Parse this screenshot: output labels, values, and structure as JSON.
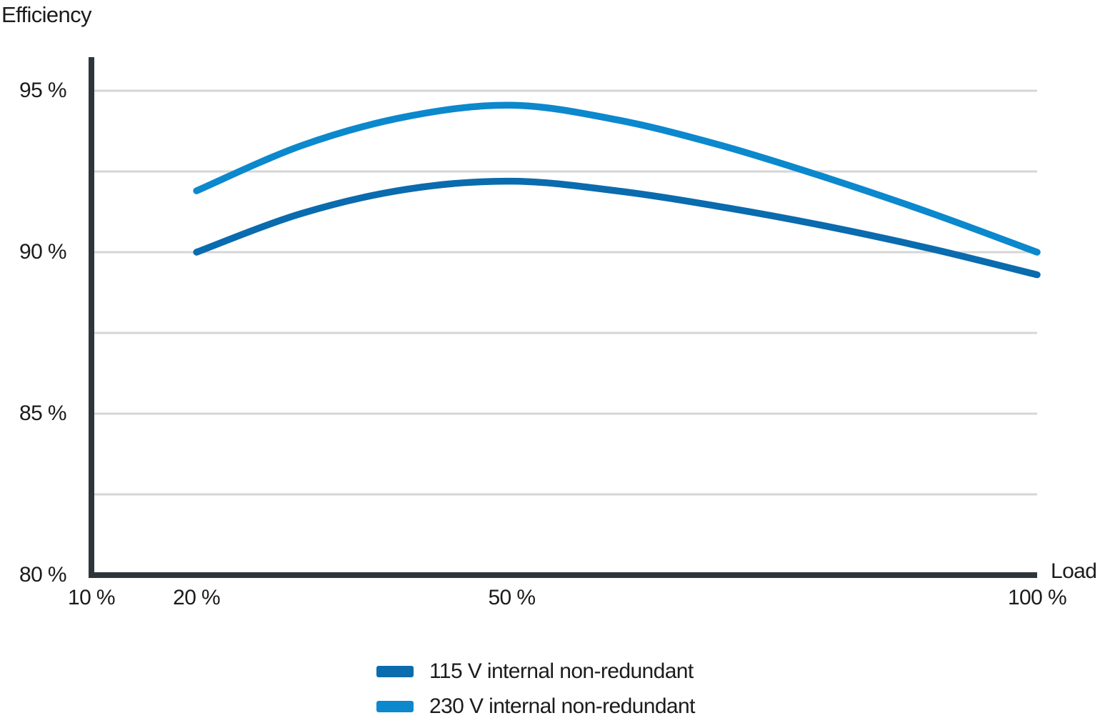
{
  "title": "Efficiency",
  "colors": {
    "axis": "#2e363b",
    "grid": "#d6d6d6",
    "text": "#1c1c1c",
    "series_dark_blue": "#0a6bae",
    "series_light_blue": "#0c88cd"
  },
  "legend": [
    {
      "label": "115 V internal non-redundant",
      "color": "#0a6bae"
    },
    {
      "label": "230 V internal non-redundant",
      "color": "#0c88cd"
    }
  ],
  "chart_data": {
    "type": "line",
    "title": "",
    "ylabel": "Efficiency",
    "xlabel": "Load",
    "xlim": [
      10,
      100
    ],
    "ylim": [
      80,
      95
    ],
    "grid": "horizontal",
    "legend_position": "bottom",
    "gridlines_y": [
      95,
      92.5,
      90,
      87.5,
      85,
      82.5
    ],
    "xticks": [
      {
        "value": 10,
        "label": "10 %"
      },
      {
        "value": 20,
        "label": "20 %"
      },
      {
        "value": 50,
        "label": "50 %"
      },
      {
        "value": 100,
        "label": "100 %"
      }
    ],
    "yticks": [
      {
        "value": 95,
        "label": "95 %"
      },
      {
        "value": 90,
        "label": "90 %"
      },
      {
        "value": 85,
        "label": "85 %"
      },
      {
        "value": 80,
        "label": "80 %"
      }
    ],
    "x": [
      20,
      30,
      40,
      50,
      60,
      70,
      80,
      90,
      100
    ],
    "x_unit": "% load",
    "y_unit": "% efficiency",
    "series": [
      {
        "name": "115 V internal non-redundant",
        "color": "#0a6bae",
        "values": [
          90.0,
          91.2,
          91.95,
          92.2,
          91.9,
          91.4,
          90.8,
          90.1,
          89.3
        ]
      },
      {
        "name": "230 V internal non-redundant",
        "color": "#0c88cd",
        "values": [
          91.9,
          93.3,
          94.2,
          94.55,
          94.1,
          93.3,
          92.3,
          91.2,
          90.0
        ]
      }
    ]
  }
}
